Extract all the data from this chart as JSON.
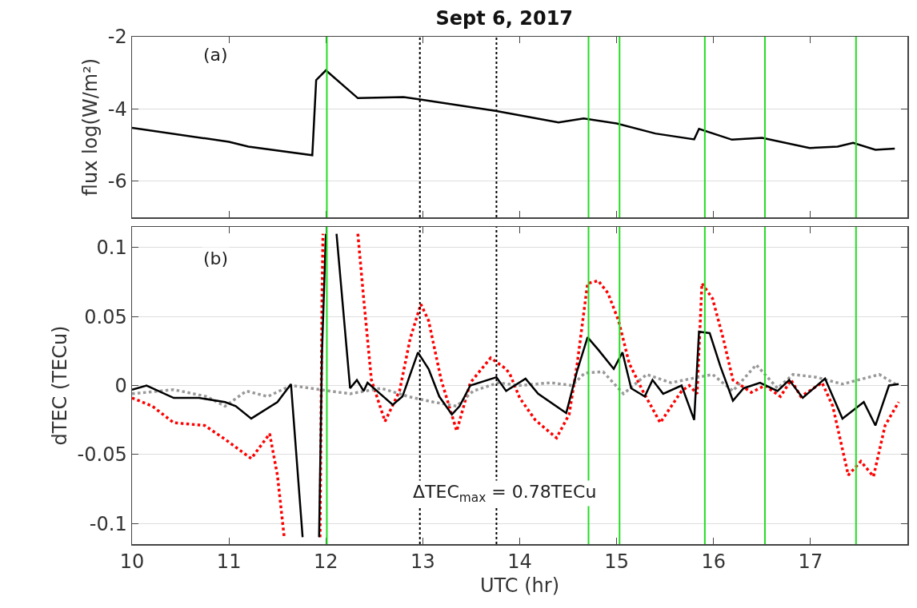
{
  "chart_data": [
    {
      "type": "line",
      "title": "Sept 6, 2017",
      "ylabel": "flux log(W/m²)",
      "xlim": [
        10,
        18
      ],
      "xticks": [
        10,
        11,
        12,
        13,
        14,
        15,
        16,
        17
      ],
      "ylim": [
        -7,
        -2
      ],
      "yticks": [
        -6,
        -4,
        -2
      ],
      "grid": "y",
      "tick_labels": "y",
      "annotations": [
        "(a)"
      ],
      "series": [
        {
          "color": "#000000",
          "line_style": "solid",
          "x": [
            10,
            11,
            11.2,
            11.86,
            11.9,
            12.0,
            12.33,
            12.8,
            13.0,
            13.75,
            14.4,
            14.66,
            15.0,
            15.4,
            15.8,
            15.85,
            16.19,
            16.5,
            16.99,
            17.28,
            17.44,
            17.67,
            17.87
          ],
          "values": [
            -4.52,
            -4.91,
            -5.04,
            -5.28,
            -3.2,
            -2.93,
            -3.7,
            -3.67,
            -3.75,
            -4.05,
            -4.37,
            -4.26,
            -4.4,
            -4.68,
            -4.84,
            -4.55,
            -4.85,
            -4.8,
            -5.08,
            -5.04,
            -4.94,
            -5.13,
            -5.1
          ]
        }
      ],
      "ref_lines": [
        {
          "axis": "x",
          "value": 12.01,
          "color": "#22dd22",
          "line_style": "solid"
        },
        {
          "axis": "x",
          "value": 14.71,
          "color": "#22dd22",
          "line_style": "solid"
        },
        {
          "axis": "x",
          "value": 15.03,
          "color": "#22dd22",
          "line_style": "solid"
        },
        {
          "axis": "x",
          "value": 15.91,
          "color": "#22dd22",
          "line_style": "solid"
        },
        {
          "axis": "x",
          "value": 16.53,
          "color": "#22dd22",
          "line_style": "solid"
        },
        {
          "axis": "x",
          "value": 17.47,
          "color": "#22dd22",
          "line_style": "solid"
        },
        {
          "axis": "x",
          "value": 12.97,
          "color": "#000000",
          "line_style": "dotted"
        },
        {
          "axis": "x",
          "value": 13.76,
          "color": "#000000",
          "line_style": "dotted"
        }
      ]
    },
    {
      "type": "line",
      "xlabel": "UTC (hr)",
      "ylabel": "dTEC (TECu)",
      "xlim": [
        10,
        18
      ],
      "xticks": [
        10,
        11,
        12,
        13,
        14,
        15,
        16,
        17
      ],
      "ylim": [
        -0.115,
        0.115
      ],
      "yticks": [
        -0.1,
        -0.05,
        0,
        0.05,
        0.1
      ],
      "grid": "y",
      "annotations": [
        "(b)",
        "ΔTEC$_{max}$ = 0.78TECu"
      ],
      "series": [
        {
          "color": "#ff0000",
          "line_style": "dotted",
          "x": [
            10,
            10.21,
            10.43,
            10.75,
            10.96,
            11.23,
            11.42,
            11.5,
            11.57,
            11.75,
            11.94,
            11.96,
            11.97,
            12.15,
            12.33,
            12.39,
            12.47,
            12.61,
            12.76,
            12.87,
            12.98,
            13.06,
            13.19,
            13.35,
            13.49,
            13.7,
            13.86,
            13.9,
            14.0,
            14.16,
            14.38,
            14.51,
            14.59,
            14.7,
            14.81,
            14.91,
            15.02,
            15.13,
            15.27,
            15.45,
            15.67,
            15.75,
            15.83,
            15.88,
            15.99,
            16.1,
            16.2,
            16.39,
            16.53,
            16.69,
            16.8,
            16.9,
            17.12,
            17.23,
            17.39,
            17.52,
            17.65,
            17.77,
            17.91
          ],
          "values": [
            -0.009,
            -0.015,
            -0.027,
            -0.029,
            -0.039,
            -0.053,
            -0.035,
            -0.065,
            -0.11,
            null,
            -0.11,
            0.063,
            0.11,
            null,
            0.11,
            0.063,
            0.004,
            -0.026,
            -0.004,
            0.034,
            0.059,
            0.047,
            0.004,
            -0.033,
            0.002,
            0.02,
            0.012,
            0.008,
            -0.009,
            -0.025,
            -0.038,
            -0.021,
            0.014,
            0.074,
            0.076,
            0.067,
            0.047,
            0.016,
            -0.004,
            -0.027,
            -0.004,
            0,
            -0.006,
            0.074,
            0.063,
            0.034,
            0.004,
            -0.005,
            0,
            -0.008,
            0.004,
            -0.008,
            0.002,
            -0.015,
            -0.065,
            -0.055,
            -0.066,
            -0.029,
            -0.012
          ]
        },
        {
          "color": "#999999",
          "line_style": "dotted",
          "x": [
            10,
            10.43,
            10.77,
            10.96,
            11.18,
            11.4,
            11.64,
            12.04,
            12.25,
            12.57,
            12.85,
            13.11,
            13.35,
            13.52,
            13.78,
            14.0,
            14.32,
            14.54,
            14.67,
            14.86,
            15.07,
            15.31,
            15.56,
            15.77,
            15.99,
            16.2,
            16.44,
            16.66,
            16.82,
            17.06,
            17.33,
            17.71,
            17.9
          ],
          "values": [
            -0.006,
            -0.003,
            -0.008,
            -0.015,
            -0.004,
            -0.008,
            0,
            -0.004,
            -0.006,
            -0.002,
            -0.008,
            -0.012,
            -0.015,
            -0.004,
            0.002,
            0,
            0.002,
            0,
            0.009,
            0.01,
            -0.006,
            0.008,
            0.002,
            0.005,
            0.008,
            -0.004,
            0.015,
            -0.002,
            0.008,
            0.006,
            0.001,
            0.008,
            0
          ]
        },
        {
          "color": "#000000",
          "line_style": "solid",
          "x": [
            10,
            10.15,
            10.43,
            10.69,
            10.96,
            11.07,
            11.23,
            11.5,
            11.64,
            11.76,
            11.85,
            11.93,
            11.96,
            12.0,
            12.06,
            12.11,
            12.25,
            12.32,
            12.39,
            12.43,
            12.69,
            12.79,
            12.95,
            13.06,
            13.17,
            13.3,
            13.38,
            13.49,
            13.76,
            13.86,
            14.06,
            14.19,
            14.48,
            14.59,
            14.7,
            14.81,
            14.97,
            15.06,
            15.15,
            15.29,
            15.37,
            15.48,
            15.67,
            15.8,
            15.85,
            15.96,
            16.07,
            16.2,
            16.31,
            16.48,
            16.66,
            16.78,
            16.92,
            17.15,
            17.33,
            17.55,
            17.67,
            17.81,
            17.91
          ],
          "values": [
            -0.003,
            0,
            -0.009,
            -0.009,
            -0.012,
            -0.015,
            -0.024,
            -0.012,
            0.001,
            -0.11,
            null,
            -0.11,
            0.024,
            0.11,
            null,
            0.11,
            -0.002,
            0.004,
            -0.004,
            0.002,
            -0.014,
            -0.008,
            0.024,
            0.012,
            -0.008,
            -0.021,
            -0.015,
            0,
            0.006,
            -0.004,
            0.005,
            -0.006,
            -0.02,
            0.01,
            0.035,
            0.026,
            0.012,
            0.024,
            -0.002,
            -0.008,
            0.004,
            -0.006,
            0,
            -0.025,
            0.039,
            0.038,
            0.014,
            -0.011,
            -0.002,
            0.002,
            -0.004,
            0.004,
            -0.009,
            0.005,
            -0.024,
            -0.012,
            -0.029,
            0,
            0.001
          ]
        }
      ],
      "ref_lines": [
        {
          "axis": "x",
          "value": 12.01,
          "color": "#22dd22",
          "line_style": "solid"
        },
        {
          "axis": "x",
          "value": 14.71,
          "color": "#22dd22",
          "line_style": "solid"
        },
        {
          "axis": "x",
          "value": 15.03,
          "color": "#22dd22",
          "line_style": "solid"
        },
        {
          "axis": "x",
          "value": 15.91,
          "color": "#22dd22",
          "line_style": "solid"
        },
        {
          "axis": "x",
          "value": 16.53,
          "color": "#22dd22",
          "line_style": "solid"
        },
        {
          "axis": "x",
          "value": 17.47,
          "color": "#22dd22",
          "line_style": "solid"
        },
        {
          "axis": "x",
          "value": 12.97,
          "color": "#000000",
          "line_style": "dotted"
        },
        {
          "axis": "x",
          "value": 13.76,
          "color": "#000000",
          "line_style": "dotted"
        }
      ]
    }
  ]
}
